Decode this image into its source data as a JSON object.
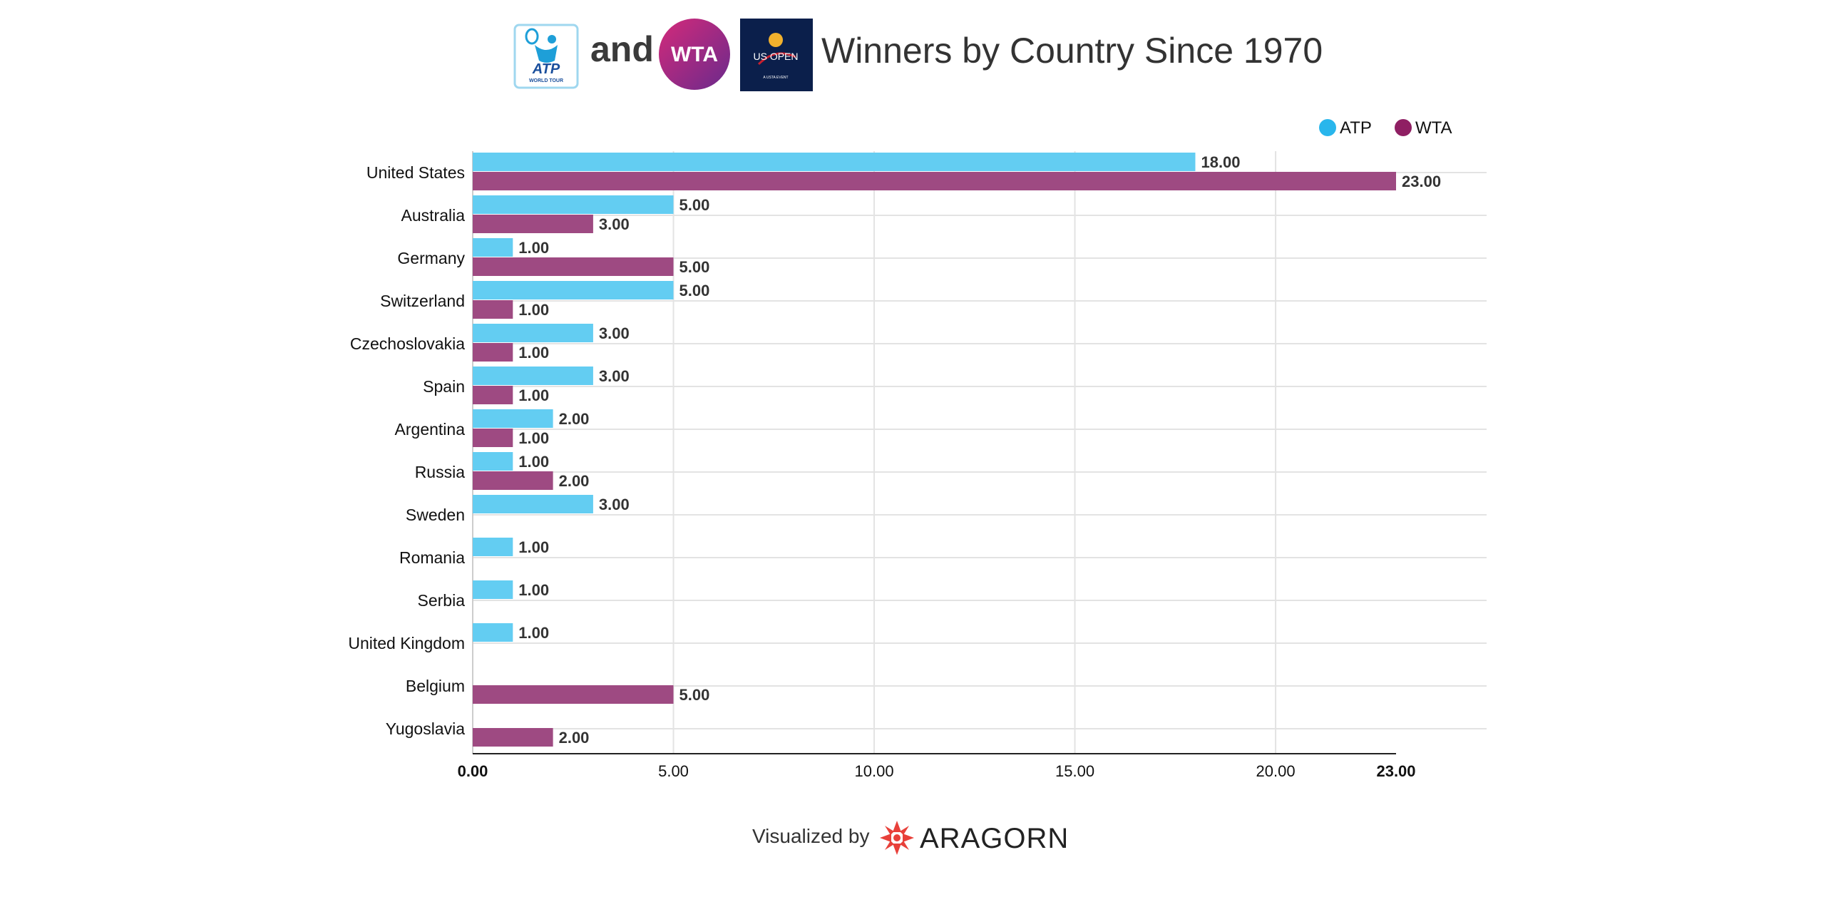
{
  "header": {
    "and_text": "and",
    "atp_logo_text": "ATP",
    "atp_logo_subtext": "WORLD TOUR",
    "wta_logo_text": "WTA",
    "usopen_logo_text": "US OPEN",
    "usopen_logo_subtext": "A USTA EVENT"
  },
  "footer": {
    "visualized_by": "Visualized by",
    "brand": "ARAGORN"
  },
  "colors": {
    "atp": "#63cdf2",
    "wta": "#9e4a82",
    "wta_legend": "#8f1f63",
    "atp_legend": "#29b6ec",
    "grid": "#e3e3e3",
    "axis": "#222222"
  },
  "chart_data": {
    "type": "bar",
    "orientation": "horizontal",
    "title": "Winners by Country Since 1970",
    "xlabel": "",
    "ylabel": "",
    "categories": [
      "United States",
      "Australia",
      "Germany",
      "Switzerland",
      "Czechoslovakia",
      "Spain",
      "Argentina",
      "Russia",
      "Sweden",
      "Romania",
      "Serbia",
      "United Kingdom",
      "Belgium",
      "Yugoslavia"
    ],
    "series": [
      {
        "name": "ATP",
        "values": [
          18,
          5,
          1,
          5,
          3,
          3,
          2,
          1,
          3,
          1,
          1,
          1,
          null,
          null
        ]
      },
      {
        "name": "WTA",
        "values": [
          23,
          3,
          5,
          1,
          1,
          1,
          1,
          2,
          null,
          null,
          null,
          null,
          5,
          2
        ]
      }
    ],
    "xlim": [
      0,
      23
    ],
    "xticks": [
      "0.00",
      "5.00",
      "10.00",
      "15.00",
      "20.00",
      "23.00"
    ],
    "grid": true,
    "legend_position": "top-right",
    "data_label_format": "0.00"
  }
}
